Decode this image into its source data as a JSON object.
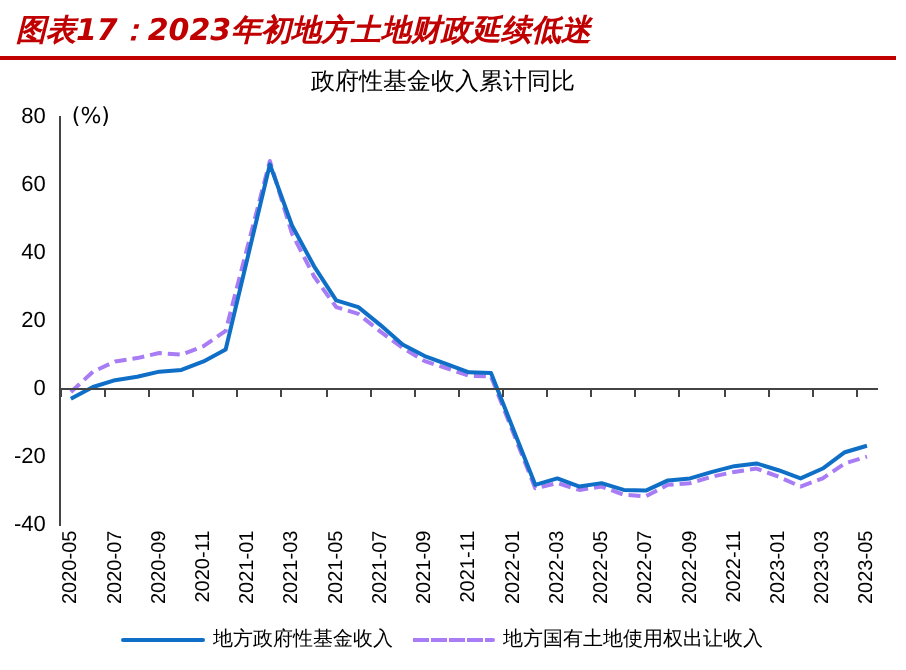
{
  "chart_data": {
    "type": "line",
    "title": "图表17：2023年初地方土地财政延续低迷",
    "subtitle": "政府性基金收入累计同比",
    "ylabel": "(%)",
    "categories": [
      "2020-05",
      null,
      "2020-07",
      null,
      "2020-09",
      null,
      "2020-11",
      null,
      "2021-01",
      null,
      "2021-03",
      null,
      "2021-05",
      null,
      "2021-07",
      null,
      "2021-09",
      null,
      "2021-11",
      null,
      "2022-01",
      null,
      "2022-03",
      null,
      "2022-05",
      null,
      "2022-07",
      null,
      "2022-09",
      null,
      "2022-11",
      null,
      "2023-01",
      null,
      "2023-03",
      null,
      "2023-05"
    ],
    "series": [
      {
        "name": "地方政府性基金收入",
        "color": "#0f6fc6",
        "line_style": "solid",
        "values": [
          -3,
          0.5,
          2.5,
          3.5,
          5,
          5.5,
          8,
          11.5,
          null,
          66,
          48,
          36,
          26,
          24,
          18.7,
          13,
          9.6,
          7.2,
          4.8,
          4.6,
          null,
          -28.3,
          -26.4,
          -28.8,
          -27.8,
          -29.8,
          -30,
          -27,
          -26.4,
          -24.5,
          -22.8,
          -22,
          -24,
          -26.4,
          -23.5,
          -18.7,
          -16.8
        ]
      },
      {
        "name": "地方国有土地使用权出让收入",
        "color": "#a77cf4",
        "line_style": "dashed",
        "values": [
          -1,
          5,
          8,
          9,
          10.5,
          10,
          12.5,
          17,
          null,
          67,
          45.6,
          33,
          24,
          22,
          16.8,
          12,
          8.1,
          6,
          3.8,
          3.6,
          null,
          -29.3,
          -27.8,
          -29.8,
          -28.8,
          -31.2,
          -31.7,
          -28.3,
          -27.8,
          -25.9,
          -24.5,
          -23.5,
          -25.9,
          -28.8,
          -26.4,
          -22,
          -20
        ]
      }
    ],
    "ylim": [
      -40,
      80
    ],
    "yticks": [
      -40,
      -20,
      0,
      20,
      40,
      60,
      80
    ],
    "ref_lines": [
      {
        "axis": "y",
        "value": 0,
        "color": "#444444",
        "line_style": "solid"
      }
    ],
    "legend": "bottom",
    "marker": "none",
    "grid": false
  }
}
